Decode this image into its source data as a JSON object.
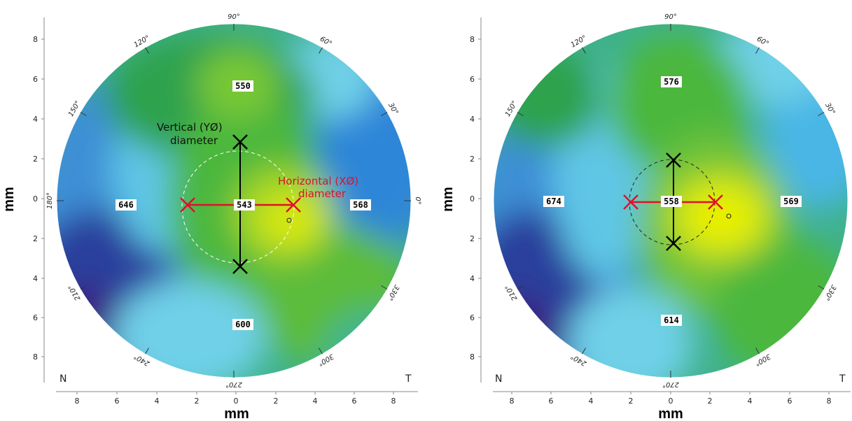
{
  "colors": {
    "background": "#ffffff",
    "horizontal_marker": "#e0102a",
    "vertical_marker": "#000000",
    "palette": [
      "#3a1a80",
      "#2e3f9f",
      "#2a68c4",
      "#3b92dc",
      "#4ab6e6",
      "#6fd0e8",
      "#3fb58f",
      "#2fa24e",
      "#4cb73e",
      "#78c836",
      "#b7dc1c",
      "#e8ef00"
    ]
  },
  "panels": [
    {
      "id": "left",
      "x_title": "mm",
      "y_title": "mm",
      "x_ticks": [
        "8",
        "6",
        "4",
        "2",
        "0",
        "2",
        "4",
        "6",
        "8"
      ],
      "y_ticks": [
        "8",
        "6",
        "4",
        "2",
        "0",
        "2",
        "4",
        "6",
        "8"
      ],
      "corner_left": "N",
      "corner_right": "T",
      "degrees": [
        {
          "label": "90°",
          "angle": 90
        },
        {
          "label": "60°",
          "angle": 60
        },
        {
          "label": "30°",
          "angle": 30
        },
        {
          "label": "0°",
          "angle": 0
        },
        {
          "label": "330°",
          "angle": 330
        },
        {
          "label": "300°",
          "angle": 300
        },
        {
          "label": "270°",
          "angle": 270
        },
        {
          "label": "240°",
          "angle": 240
        },
        {
          "label": "210°",
          "angle": 210
        },
        {
          "label": "180°",
          "angle": 180
        },
        {
          "label": "150°",
          "angle": 150
        },
        {
          "label": "120°",
          "angle": 120
        }
      ],
      "values": [
        {
          "label": "550",
          "pos": "superior"
        },
        {
          "label": "646",
          "pos": "nasal"
        },
        {
          "label": "543",
          "pos": "center"
        },
        {
          "label": "568",
          "pos": "temporal"
        },
        {
          "label": "600",
          "pos": "inferior"
        }
      ],
      "annotation_vertical": [
        "Vertical (YØ)",
        "diameter"
      ],
      "annotation_horizontal": [
        "Horizontal (XØ)",
        "diameter"
      ],
      "measurements": {
        "horizontal_mm": [
          -2.6,
          2.6
        ],
        "vertical_mm": [
          2.9,
          -3.6
        ],
        "marker_y_mm": -0.3,
        "marker_x_mm": 0.3
      }
    },
    {
      "id": "right",
      "x_title": "mm",
      "y_title": "mm",
      "x_ticks": [
        "8",
        "6",
        "4",
        "2",
        "0",
        "2",
        "4",
        "6",
        "8"
      ],
      "y_ticks": [
        "8",
        "6",
        "4",
        "2",
        "0",
        "2",
        "4",
        "6",
        "8"
      ],
      "corner_left": "N",
      "corner_right": "T",
      "degrees": [
        {
          "label": "90°",
          "angle": 90
        },
        {
          "label": "60°",
          "angle": 60
        },
        {
          "label": "30°",
          "angle": 30
        },
        {
          "label": "330°",
          "angle": 330
        },
        {
          "label": "300°",
          "angle": 300
        },
        {
          "label": "270°",
          "angle": 270
        },
        {
          "label": "240°",
          "angle": 240
        },
        {
          "label": "210°",
          "angle": 210
        },
        {
          "label": "150°",
          "angle": 150
        },
        {
          "label": "120°",
          "angle": 120
        }
      ],
      "values": [
        {
          "label": "576",
          "pos": "superior"
        },
        {
          "label": "674",
          "pos": "nasal"
        },
        {
          "label": "558",
          "pos": "center"
        },
        {
          "label": "569",
          "pos": "temporal"
        },
        {
          "label": "614",
          "pos": "inferior"
        }
      ],
      "annotation_vertical": [],
      "annotation_horizontal": [],
      "measurements": {
        "horizontal_mm": [
          -2.1,
          2.2
        ],
        "vertical_mm": [
          1.9,
          -2.3
        ],
        "marker_y_mm": -0.2,
        "marker_x_mm": 0.2
      }
    }
  ]
}
